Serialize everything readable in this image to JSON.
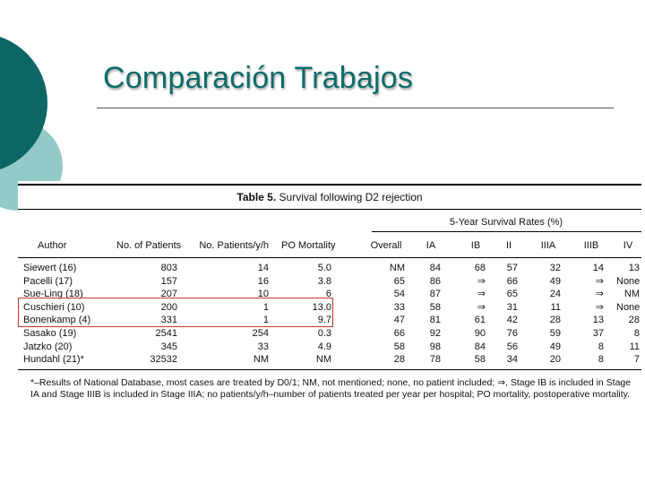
{
  "slide": {
    "title": "Comparación Trabajos",
    "colors": {
      "title": "#0e6b69",
      "deco_dark": "#0b6664",
      "deco_light": "#93cac8",
      "highlight": "#c0392b"
    }
  },
  "table": {
    "caption_bold": "Table 5.",
    "caption_text": "Survival following D2 rejection",
    "group_header": "5-Year Survival Rates (%)",
    "columns": [
      "Author",
      "No. of Patients",
      "No. Patients/y/h",
      "PO Mortality",
      "Overall",
      "IA",
      "IB",
      "II",
      "IIIA",
      "IIIB",
      "IV"
    ],
    "rows": [
      [
        "Siewert (16)",
        "803",
        "14",
        "5.0",
        "NM",
        "84",
        "68",
        "57",
        "32",
        "14",
        "13"
      ],
      [
        "Pacelli (17)",
        "157",
        "16",
        "3.8",
        "65",
        "86",
        "⇒",
        "66",
        "49",
        "⇒",
        "None"
      ],
      [
        "Sue-Ling (18)",
        "207",
        "10",
        "6",
        "54",
        "87",
        "⇒",
        "65",
        "24",
        "⇒",
        "NM"
      ],
      [
        "Cuschieri (10)",
        "200",
        "1",
        "13.0",
        "33",
        "58",
        "⇒",
        "31",
        "11",
        "⇒",
        "None"
      ],
      [
        "Bonenkamp (4)",
        "331",
        "1",
        "9.7",
        "47",
        "81",
        "61",
        "42",
        "28",
        "13",
        "28"
      ],
      [
        "Sasako (19)",
        "2541",
        "254",
        "0.3",
        "66",
        "92",
        "90",
        "76",
        "59",
        "37",
        "8"
      ],
      [
        "Jatzko (20)",
        "345",
        "33",
        "4.9",
        "58",
        "98",
        "84",
        "56",
        "49",
        "8",
        "11"
      ],
      [
        "Hundahl (21)*",
        "32532",
        "NM",
        "NM",
        "28",
        "78",
        "58",
        "34",
        "20",
        "8",
        "7"
      ]
    ],
    "footnote": "*–Results of National Database, most cases are treated by D0/1; NM, not mentioned; none, no patient included; ⇒, Stage IB is included in Stage IA and Stage IIIB is included in Stage IIIA; no patients/y/h–number of patients treated per year per hospital; PO mortality, postoperative mortality."
  }
}
